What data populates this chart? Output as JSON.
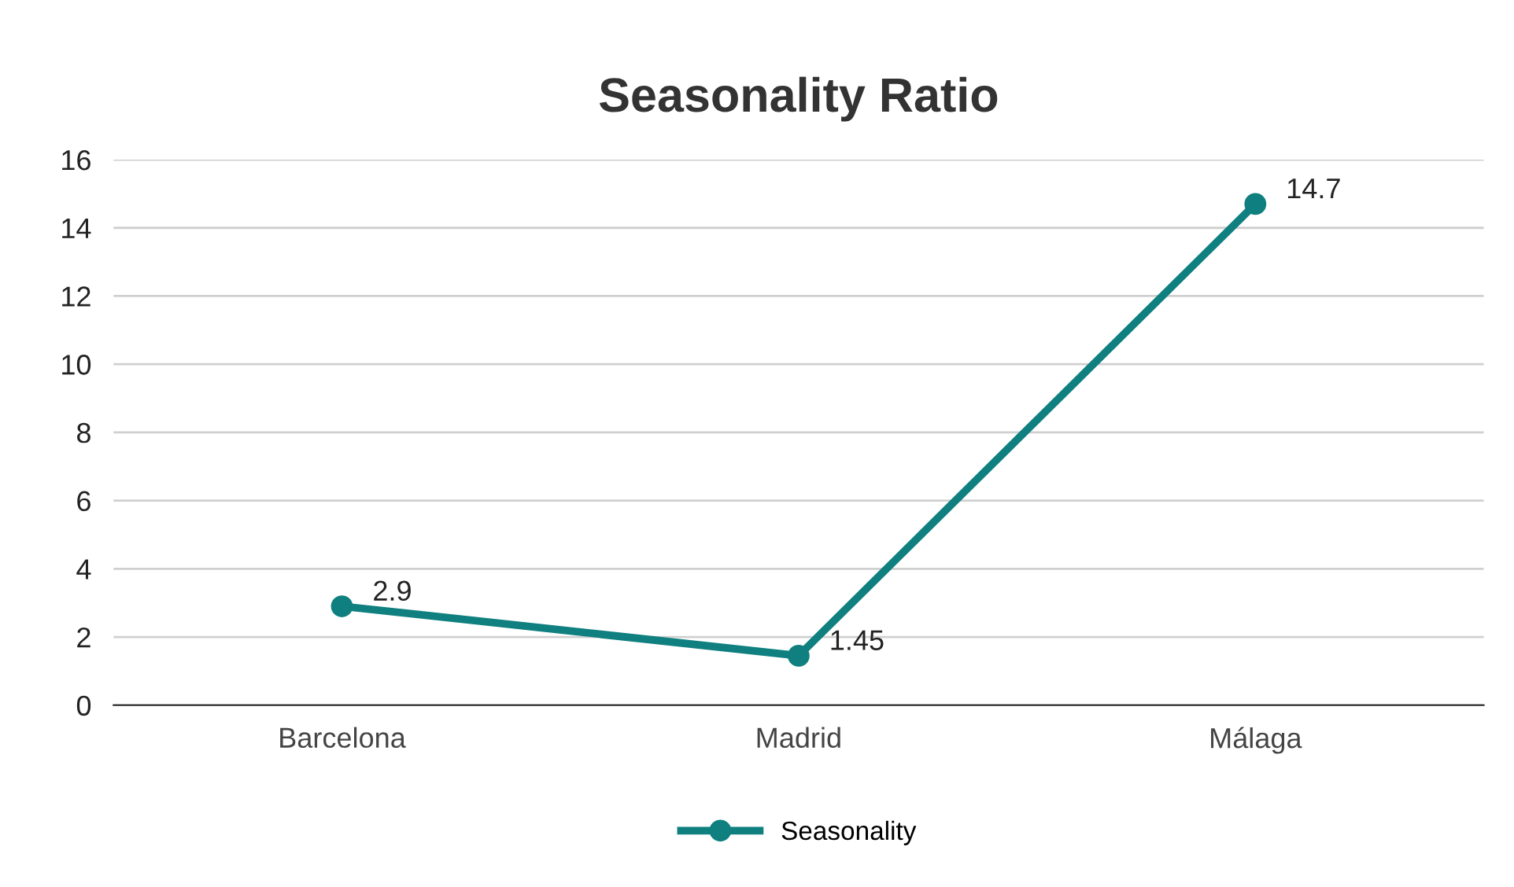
{
  "chart_data": {
    "type": "line",
    "title": "Seasonality Ratio",
    "categories": [
      "Barcelona",
      "Madrid",
      "Málaga"
    ],
    "series": [
      {
        "name": "Seasonality",
        "color": "#0f7f7f",
        "values": [
          2.9,
          1.45,
          14.7
        ]
      }
    ],
    "ylim": [
      0,
      16
    ],
    "yticks": [
      0,
      2,
      4,
      6,
      8,
      10,
      12,
      14,
      16
    ],
    "grid": "y",
    "legend": "bottom",
    "marker": "circle",
    "line_style": "solid",
    "data_labels": true
  }
}
